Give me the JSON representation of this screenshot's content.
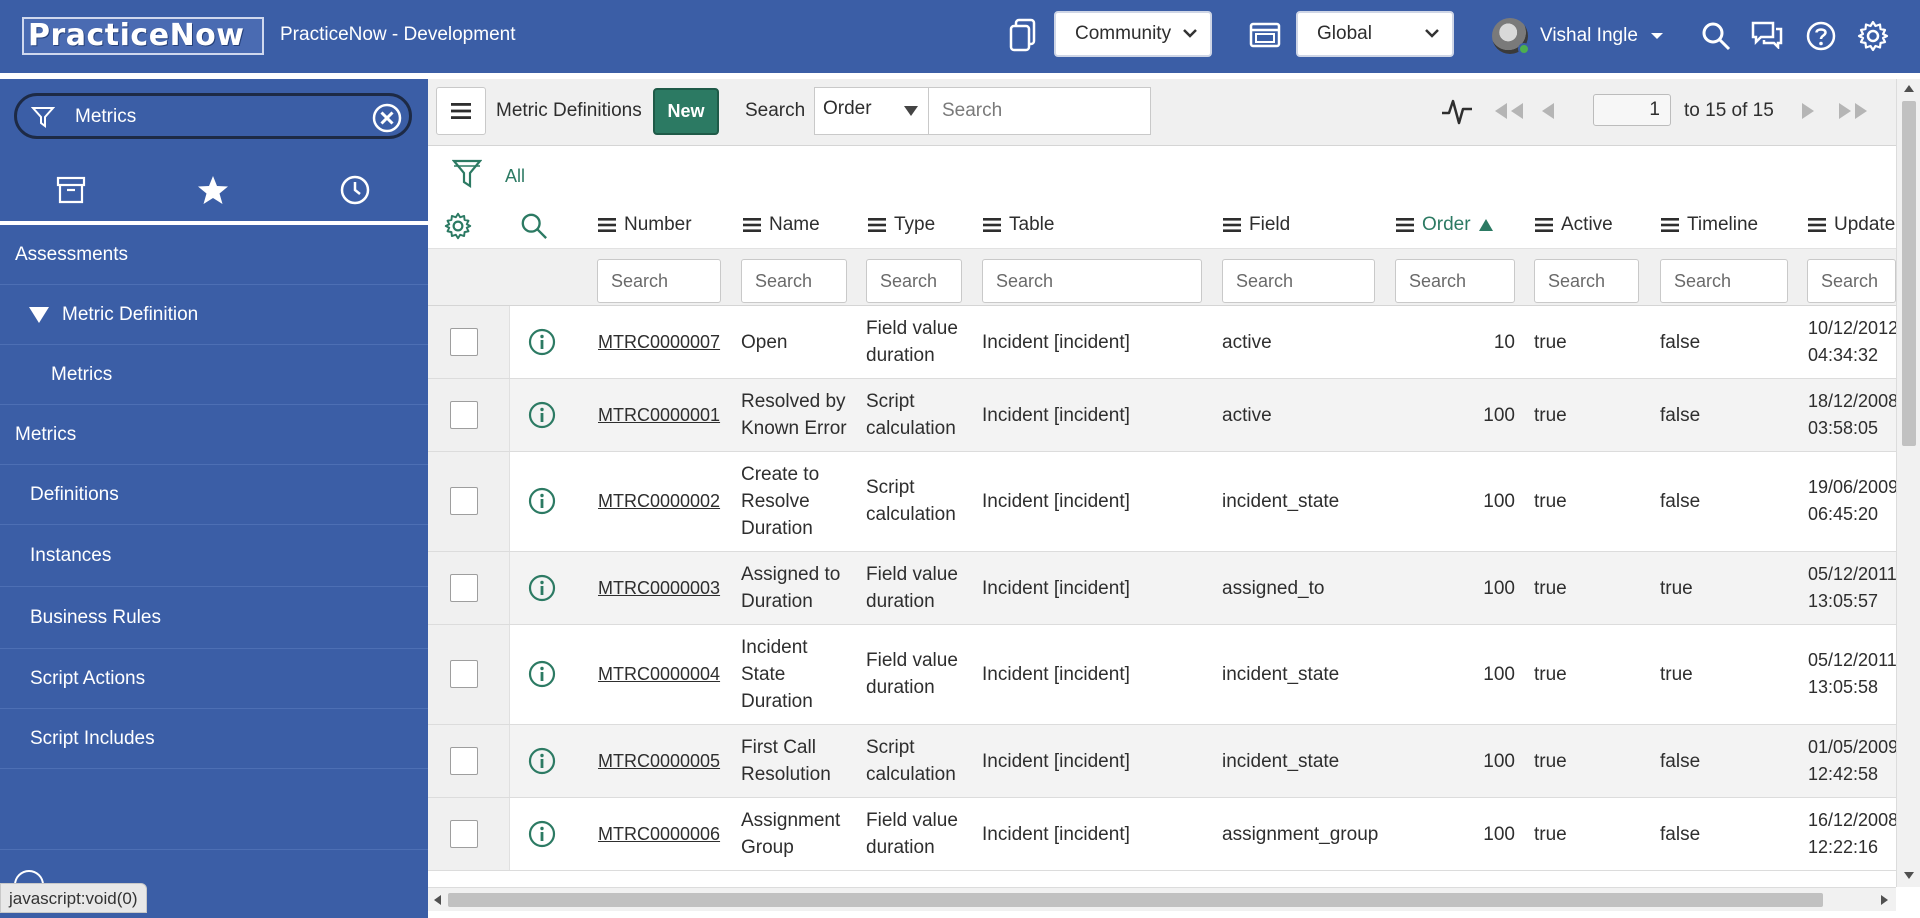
{
  "header": {
    "logo_text": "PracticeNow",
    "app_title": "PracticeNow - Development",
    "domain_select": "Community",
    "scope_select": "Global",
    "user_name": "Vishal Ingle"
  },
  "sidebar": {
    "filter_value": "Metrics",
    "nav": [
      {
        "label": "Assessments",
        "level": "section"
      },
      {
        "label": "Metric Definition",
        "level": "group"
      },
      {
        "label": "Metrics",
        "level": "l2"
      },
      {
        "label": "Metrics",
        "level": "section"
      },
      {
        "label": "Definitions",
        "level": "l1"
      },
      {
        "label": "Instances",
        "level": "l1"
      },
      {
        "label": "Business Rules",
        "level": "l1"
      },
      {
        "label": "Script Actions",
        "level": "l1"
      },
      {
        "label": "Script Includes",
        "level": "l1"
      }
    ],
    "status_url": "javascript:void(0)"
  },
  "list": {
    "title": "Metric Definitions",
    "new_label": "New",
    "search_label": "Search",
    "search_field": "Order",
    "search_placeholder": "Search",
    "page_number": "1",
    "page_total": "to 15 of 15",
    "breadcrumb": "All",
    "columns": [
      "Number",
      "Name",
      "Type",
      "Table",
      "Field",
      "Order",
      "Active",
      "Timeline",
      "Update"
    ],
    "sorted_column": "Order",
    "column_search_placeholder": "Search",
    "rows": [
      {
        "number": "MTRC0000007",
        "name": [
          "Open"
        ],
        "type": [
          "Field value",
          "duration"
        ],
        "table": "Incident [incident]",
        "field": "active",
        "order": "10",
        "active": "true",
        "timeline": "false",
        "updated": [
          "10/12/2012",
          "04:34:32"
        ]
      },
      {
        "number": "MTRC0000001",
        "name": [
          "Resolved by",
          "Known Error"
        ],
        "type": [
          "Script",
          "calculation"
        ],
        "table": "Incident [incident]",
        "field": "active",
        "order": "100",
        "active": "true",
        "timeline": "false",
        "updated": [
          "18/12/2008",
          "03:58:05"
        ]
      },
      {
        "number": "MTRC0000002",
        "name": [
          "Create to",
          "Resolve",
          "Duration"
        ],
        "type": [
          "Script",
          "calculation"
        ],
        "table": "Incident [incident]",
        "field": "incident_state",
        "order": "100",
        "active": "true",
        "timeline": "false",
        "updated": [
          "19/06/2009",
          "06:45:20"
        ]
      },
      {
        "number": "MTRC0000003",
        "name": [
          "Assigned to",
          "Duration"
        ],
        "type": [
          "Field value",
          "duration"
        ],
        "table": "Incident [incident]",
        "field": "assigned_to",
        "order": "100",
        "active": "true",
        "timeline": "true",
        "updated": [
          "05/12/2011",
          "13:05:57"
        ]
      },
      {
        "number": "MTRC0000004",
        "name": [
          "Incident",
          "State",
          "Duration"
        ],
        "type": [
          "Field value",
          "duration"
        ],
        "table": "Incident [incident]",
        "field": "incident_state",
        "order": "100",
        "active": "true",
        "timeline": "true",
        "updated": [
          "05/12/2011",
          "13:05:58"
        ]
      },
      {
        "number": "MTRC0000005",
        "name": [
          "First Call",
          "Resolution"
        ],
        "type": [
          "Script",
          "calculation"
        ],
        "table": "Incident [incident]",
        "field": "incident_state",
        "order": "100",
        "active": "true",
        "timeline": "false",
        "updated": [
          "01/05/2009",
          "12:42:58"
        ]
      },
      {
        "number": "MTRC0000006",
        "name": [
          "Assignment",
          "Group"
        ],
        "type": [
          "Field value",
          "duration"
        ],
        "table": "Incident [incident]",
        "field": "assignment_group",
        "order": "100",
        "active": "true",
        "timeline": "false",
        "updated": [
          "16/12/2008",
          "12:22:16"
        ]
      }
    ]
  },
  "colors": {
    "header_bg": "#3b5ea6",
    "accent_green": "#2c7a63"
  },
  "icons": [
    "connect-icon",
    "domain-picker-icon",
    "search-icon",
    "chat-icon",
    "help-icon",
    "gear-icon",
    "funnel-icon",
    "clear-icon",
    "archive-icon",
    "star-icon",
    "history-icon",
    "hamburger-icon",
    "activity-icon",
    "first-page-icon",
    "prev-page-icon",
    "next-page-icon",
    "last-page-icon",
    "info-icon"
  ]
}
